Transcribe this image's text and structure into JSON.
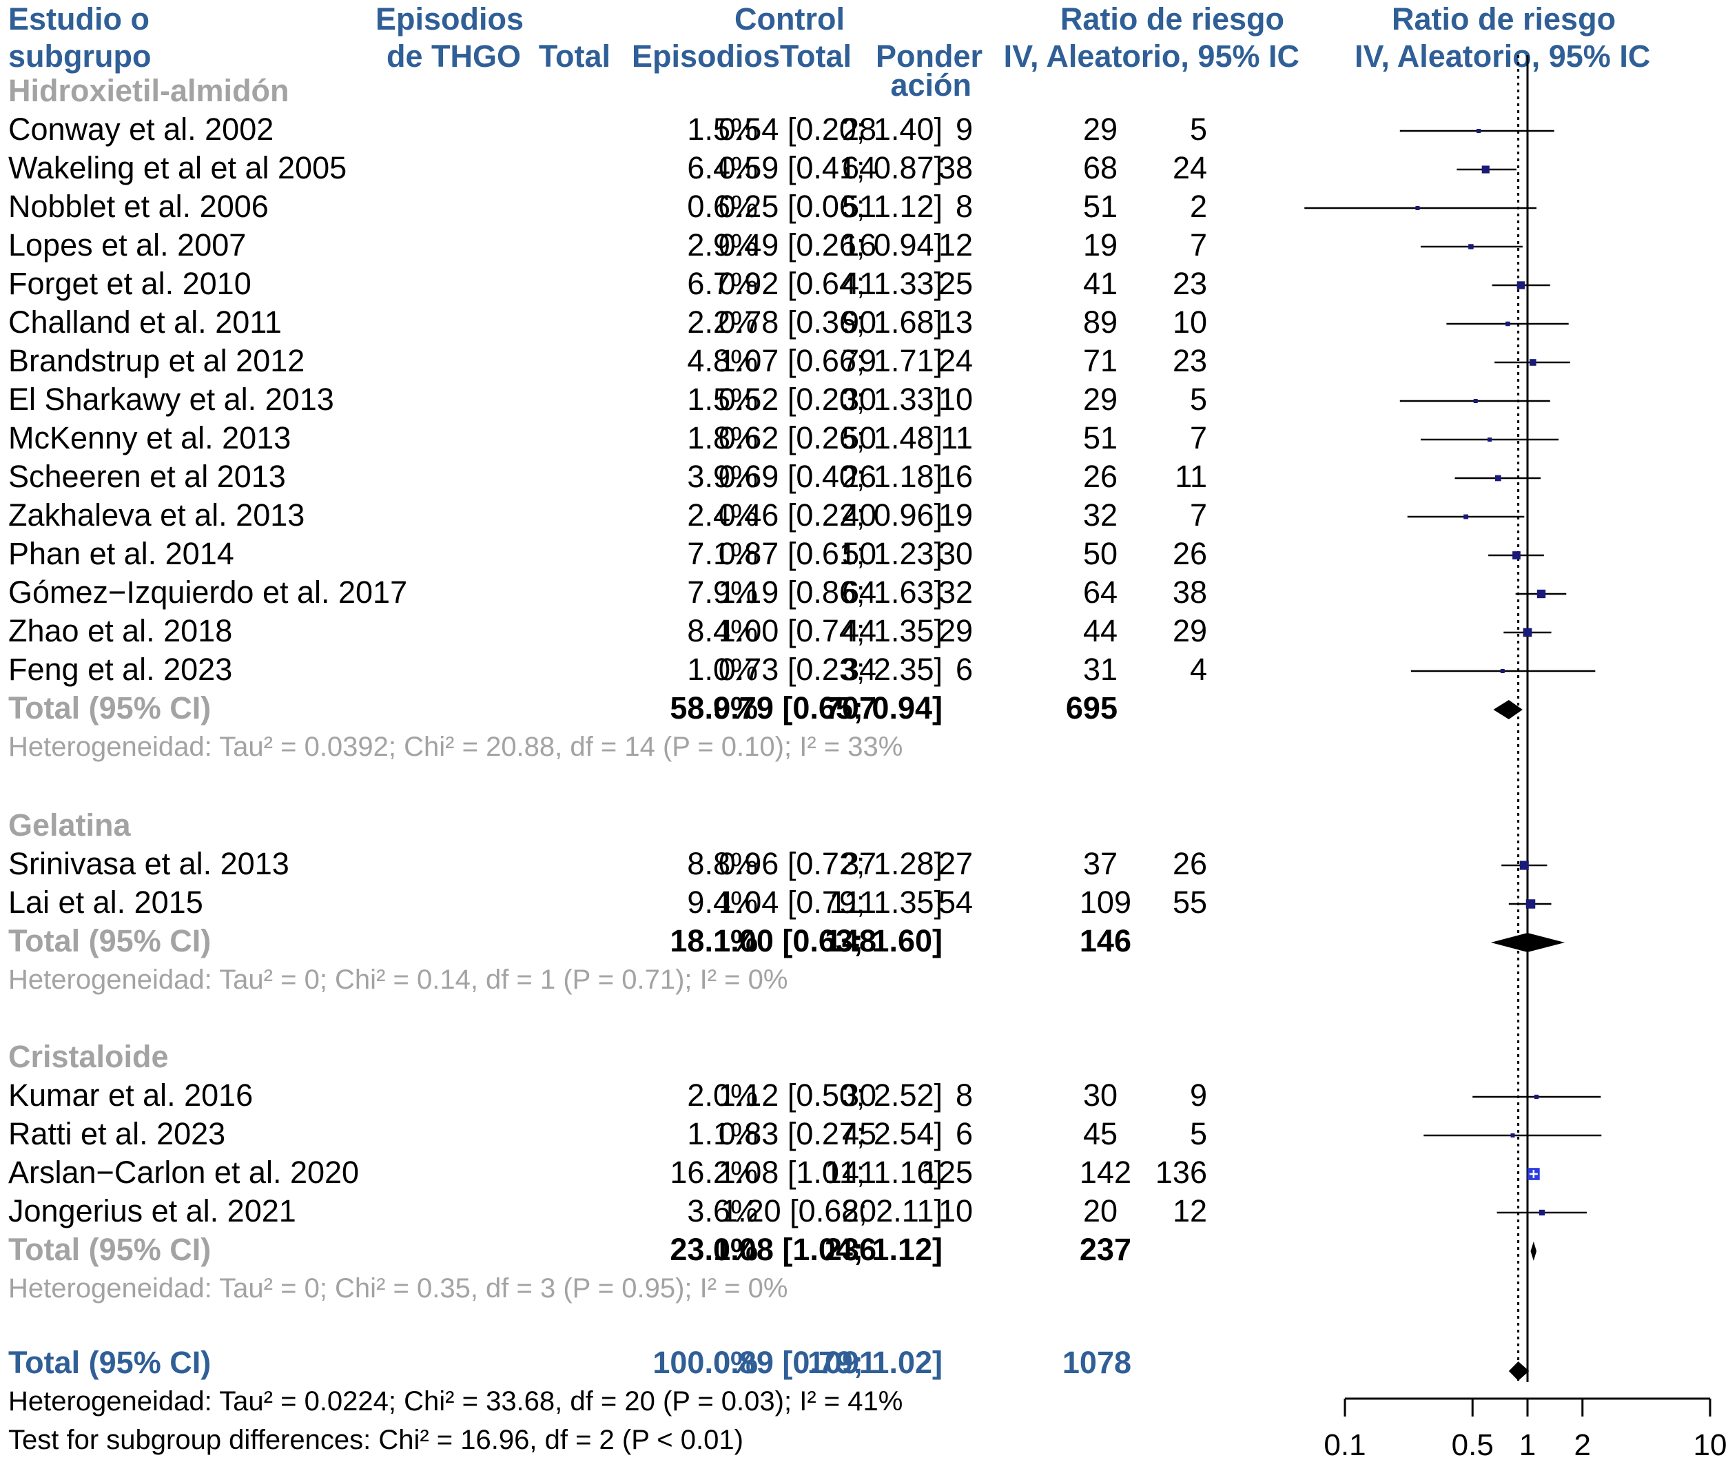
{
  "header": {
    "study_l1": "Estudio o",
    "study_l2": "subgrupo",
    "events_l1": "Episodios",
    "events_l2": "de THGO",
    "total": "Total",
    "control_l1": "Control",
    "control_events": "Episodios",
    "control_total": "Total",
    "weight_l1": "Ponder",
    "weight_l2": "ación",
    "rr_l1": "Ratio de riesgo",
    "rr_l2": "IV, Aleatorio, 95% IC",
    "plot_l1": "Ratio de riesgo",
    "plot_l2": "IV, Aleatorio, 95% IC"
  },
  "colors": {
    "header_blue": "#2f5f96",
    "subgroup_grey": "#a3a3a3",
    "marker_navy": "#1a1a7a",
    "highlight_blue": "#2b3de0"
  },
  "chart_data": {
    "type": "forest",
    "x_scale": "log",
    "xlim": [
      0.1,
      10
    ],
    "x_ticks": [
      "0.1",
      "0.5",
      "1",
      "2",
      "10"
    ],
    "x_tick_values": [
      0.1,
      0.5,
      1,
      2,
      10
    ],
    "reference_line": 1,
    "overall_line": 0.89,
    "groups": [
      {
        "name": "Hidroxietil-almidón",
        "studies": [
          {
            "study": "Conway et al. 2002",
            "e_exp": "5",
            "n_exp": "29",
            "e_ctrl": "9",
            "n_ctrl": "28",
            "weight": "1.5%",
            "rr_text": "0.54 [0.20; 1.40]",
            "rr": 0.54,
            "lo": 0.2,
            "hi": 1.4
          },
          {
            "study": "Wakeling et al et al 2005",
            "e_exp": "24",
            "n_exp": "68",
            "e_ctrl": "38",
            "n_ctrl": "64",
            "weight": "6.4%",
            "rr_text": "0.59 [0.41; 0.87]",
            "rr": 0.59,
            "lo": 0.41,
            "hi": 0.87
          },
          {
            "study": "Nobblet et al. 2006",
            "e_exp": "2",
            "n_exp": "51",
            "e_ctrl": "8",
            "n_ctrl": "51",
            "weight": "0.6%",
            "rr_text": "0.25 [0.06; 1.12]",
            "rr": 0.25,
            "lo": 0.06,
            "hi": 1.12
          },
          {
            "study": "Lopes et al. 2007",
            "e_exp": "7",
            "n_exp": "19",
            "e_ctrl": "12",
            "n_ctrl": "16",
            "weight": "2.9%",
            "rr_text": "0.49 [0.26; 0.94]",
            "rr": 0.49,
            "lo": 0.26,
            "hi": 0.94
          },
          {
            "study": "Forget et al. 2010",
            "e_exp": "23",
            "n_exp": "41",
            "e_ctrl": "25",
            "n_ctrl": "41",
            "weight": "6.7%",
            "rr_text": "0.92 [0.64; 1.33]",
            "rr": 0.92,
            "lo": 0.64,
            "hi": 1.33
          },
          {
            "study": "Challand et al. 2011",
            "e_exp": "10",
            "n_exp": "89",
            "e_ctrl": "13",
            "n_ctrl": "90",
            "weight": "2.2%",
            "rr_text": "0.78 [0.36; 1.68]",
            "rr": 0.78,
            "lo": 0.36,
            "hi": 1.68
          },
          {
            "study": "Brandstrup et al 2012",
            "e_exp": "23",
            "n_exp": "71",
            "e_ctrl": "24",
            "n_ctrl": "79",
            "weight": "4.8%",
            "rr_text": "1.07 [0.66; 1.71]",
            "rr": 1.07,
            "lo": 0.66,
            "hi": 1.71
          },
          {
            "study": "El Sharkawy et al. 2013",
            "e_exp": "5",
            "n_exp": "29",
            "e_ctrl": "10",
            "n_ctrl": "30",
            "weight": "1.5%",
            "rr_text": "0.52 [0.20; 1.33]",
            "rr": 0.52,
            "lo": 0.2,
            "hi": 1.33
          },
          {
            "study": "McKenny et al. 2013",
            "e_exp": "7",
            "n_exp": "51",
            "e_ctrl": "11",
            "n_ctrl": "50",
            "weight": "1.8%",
            "rr_text": "0.62 [0.26; 1.48]",
            "rr": 0.62,
            "lo": 0.26,
            "hi": 1.48
          },
          {
            "study": "Scheeren et al 2013",
            "e_exp": "11",
            "n_exp": "26",
            "e_ctrl": "16",
            "n_ctrl": "26",
            "weight": "3.9%",
            "rr_text": "0.69 [0.40; 1.18]",
            "rr": 0.69,
            "lo": 0.4,
            "hi": 1.18
          },
          {
            "study": "Zakhaleva et al. 2013",
            "e_exp": "7",
            "n_exp": "32",
            "e_ctrl": "19",
            "n_ctrl": "40",
            "weight": "2.4%",
            "rr_text": "0.46 [0.22; 0.96]",
            "rr": 0.46,
            "lo": 0.22,
            "hi": 0.96
          },
          {
            "study": "Phan et al. 2014",
            "e_exp": "26",
            "n_exp": "50",
            "e_ctrl": "30",
            "n_ctrl": "50",
            "weight": "7.1%",
            "rr_text": "0.87 [0.61; 1.23]",
            "rr": 0.87,
            "lo": 0.61,
            "hi": 1.23
          },
          {
            "study": "Gómez−Izquierdo et al. 2017",
            "e_exp": "38",
            "n_exp": "64",
            "e_ctrl": "32",
            "n_ctrl": "64",
            "weight": "7.9%",
            "rr_text": "1.19 [0.86; 1.63]",
            "rr": 1.19,
            "lo": 0.86,
            "hi": 1.63
          },
          {
            "study": "Zhao et al. 2018",
            "e_exp": "29",
            "n_exp": "44",
            "e_ctrl": "29",
            "n_ctrl": "44",
            "weight": "8.4%",
            "rr_text": "1.00 [0.74; 1.35]",
            "rr": 1.0,
            "lo": 0.74,
            "hi": 1.35
          },
          {
            "study": "Feng et al. 2023",
            "e_exp": "4",
            "n_exp": "31",
            "e_ctrl": "6",
            "n_ctrl": "34",
            "weight": "1.0%",
            "rr_text": "0.73 [0.23; 2.35]",
            "rr": 0.73,
            "lo": 0.23,
            "hi": 2.35
          }
        ],
        "total": {
          "label": "Total (95% CI)",
          "n_exp": "695",
          "n_ctrl": "707",
          "weight": "58.9%",
          "rr_text": "0.79 [0.65; 0.94]",
          "rr": 0.79,
          "lo": 0.65,
          "hi": 0.94
        },
        "heterogeneity": "Heterogeneidad: Tau² = 0.0392; Chi² = 20.88, df = 14 (P = 0.10); I² = 33%"
      },
      {
        "name": "Gelatina",
        "studies": [
          {
            "study": "Srinivasa et al. 2013",
            "e_exp": "26",
            "n_exp": "37",
            "e_ctrl": "27",
            "n_ctrl": "37",
            "weight": "8.8%",
            "rr_text": "0.96 [0.72; 1.28]",
            "rr": 0.96,
            "lo": 0.72,
            "hi": 1.28
          },
          {
            "study": "Lai et al. 2015",
            "e_exp": "55",
            "n_exp": "109",
            "e_ctrl": "54",
            "n_ctrl": "111",
            "weight": "9.4%",
            "rr_text": "1.04 [0.79; 1.35]",
            "rr": 1.04,
            "lo": 0.79,
            "hi": 1.35
          }
        ],
        "total": {
          "label": "Total (95% CI)",
          "n_exp": "146",
          "n_ctrl": "148",
          "weight": "18.1%",
          "rr_text": "1.00 [0.63; 1.60]",
          "rr": 1.0,
          "lo": 0.63,
          "hi": 1.6
        },
        "heterogeneity": "Heterogeneidad: Tau² = 0; Chi² = 0.14, df = 1 (P = 0.71); I² = 0%"
      },
      {
        "name": "Cristaloide",
        "studies": [
          {
            "study": "Kumar et al. 2016",
            "e_exp": "9",
            "n_exp": "30",
            "e_ctrl": "8",
            "n_ctrl": "30",
            "weight": "2.0%",
            "rr_text": "1.12 [0.50; 2.52]",
            "rr": 1.12,
            "lo": 0.5,
            "hi": 2.52
          },
          {
            "study": "Ratti et al. 2023",
            "e_exp": "5",
            "n_exp": "45",
            "e_ctrl": "6",
            "n_ctrl": "45",
            "weight": "1.1%",
            "rr_text": "0.83 [0.27; 2.54]",
            "rr": 0.83,
            "lo": 0.27,
            "hi": 2.54
          },
          {
            "study": "Arslan−Carlon et al. 2020",
            "e_exp": "136",
            "n_exp": "142",
            "e_ctrl": "125",
            "n_ctrl": "141",
            "weight": "16.2%",
            "rr_text": "1.08 [1.01; 1.16]",
            "rr": 1.08,
            "lo": 1.01,
            "hi": 1.16
          },
          {
            "study": "Jongerius et al. 2021",
            "e_exp": "12",
            "n_exp": "20",
            "e_ctrl": "10",
            "n_ctrl": "20",
            "weight": "3.6%",
            "rr_text": "1.20 [0.68; 2.11]",
            "rr": 1.2,
            "lo": 0.68,
            "hi": 2.11
          }
        ],
        "total": {
          "label": "Total (95% CI)",
          "n_exp": "237",
          "n_ctrl": "236",
          "weight": "23.0%",
          "rr_text": "1.08 [1.04; 1.12]",
          "rr": 1.08,
          "lo": 1.04,
          "hi": 1.12
        },
        "heterogeneity": "Heterogeneidad: Tau² = 0; Chi² = 0.35, df = 3 (P = 0.95); I² = 0%"
      }
    ],
    "overall": {
      "label": "Total (95% CI)",
      "n_exp": "1078",
      "n_ctrl": "1091",
      "weight": "100.0%",
      "rr_text": "0.89 [0.79; 1.02]",
      "rr": 0.89,
      "lo": 0.79,
      "hi": 1.02
    },
    "overall_heterogeneity": "Heterogeneidad: Tau² = 0.0224; Chi² = 33.68, df = 20 (P = 0.03); I² = 41%",
    "subgroup_test": "Test for subgroup differences: Chi² = 16.96, df = 2 (P < 0.01)"
  }
}
